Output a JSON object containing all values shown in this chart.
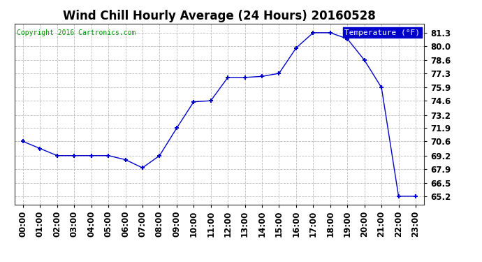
{
  "title": "Wind Chill Hourly Average (24 Hours) 20160528",
  "copyright": "Copyright 2016 Cartronics.com",
  "legend_label": "Temperature (°F)",
  "hours": [
    0,
    1,
    2,
    3,
    4,
    5,
    6,
    7,
    8,
    9,
    10,
    11,
    12,
    13,
    14,
    15,
    16,
    17,
    18,
    19,
    20,
    21,
    22,
    23
  ],
  "values": [
    70.6,
    69.9,
    69.2,
    69.2,
    69.2,
    69.2,
    68.8,
    68.0,
    69.2,
    71.9,
    74.5,
    74.6,
    76.9,
    76.9,
    77.0,
    77.3,
    79.8,
    81.3,
    81.3,
    80.7,
    78.6,
    75.9,
    65.2,
    65.2
  ],
  "ylim_min": 64.4,
  "ylim_max": 82.2,
  "yticks": [
    65.2,
    66.5,
    67.9,
    69.2,
    70.6,
    71.9,
    73.2,
    74.6,
    75.9,
    77.3,
    78.6,
    80.0,
    81.3
  ],
  "line_color": "#0000cc",
  "marker_color": "#0000cc",
  "bg_color": "#ffffff",
  "plot_bg_color": "#ffffff",
  "grid_color": "#bbbbbb",
  "title_fontsize": 12,
  "tick_label_fontsize": 8.5,
  "copyright_fontsize": 7,
  "legend_bg_color": "#0000cc",
  "legend_text_color": "#ffffff"
}
